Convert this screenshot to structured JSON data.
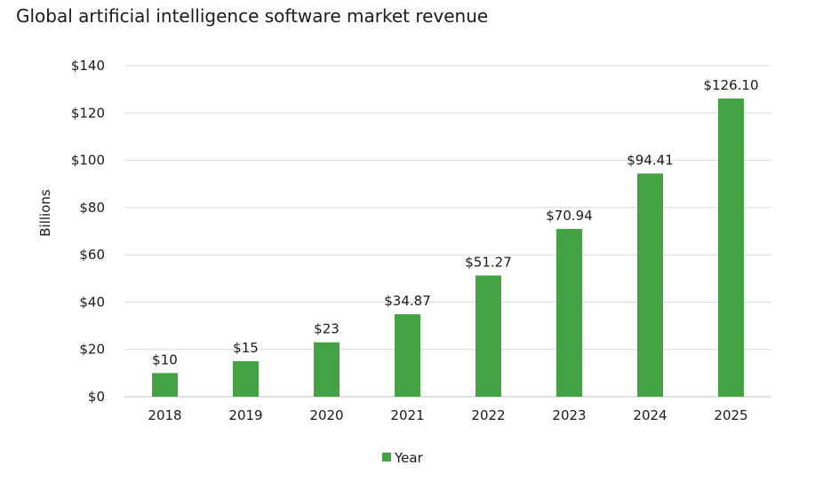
{
  "chart_data": {
    "type": "bar",
    "title": "Global artificial intelligence software market revenue",
    "xlabel": "",
    "ylabel": "Billions",
    "categories": [
      "2018",
      "2019",
      "2020",
      "2021",
      "2022",
      "2023",
      "2024",
      "2025"
    ],
    "series": [
      {
        "name": "Year",
        "color": "#43a343",
        "values": [
          10,
          15,
          23,
          34.87,
          51.27,
          70.94,
          94.41,
          126.1
        ],
        "data_labels": [
          "$10",
          "$15",
          "$23",
          "$34.87",
          "$51.27",
          "$70.94",
          "$94.41",
          "$126.10"
        ]
      }
    ],
    "ylim": [
      0,
      140
    ],
    "yticks": [
      0,
      20,
      40,
      60,
      80,
      100,
      120,
      140
    ],
    "ytick_labels": [
      "$0",
      "$20",
      "$40",
      "$60",
      "$80",
      "$100",
      "$120",
      "$140"
    ],
    "grid": true,
    "legend": "bottom-center"
  }
}
